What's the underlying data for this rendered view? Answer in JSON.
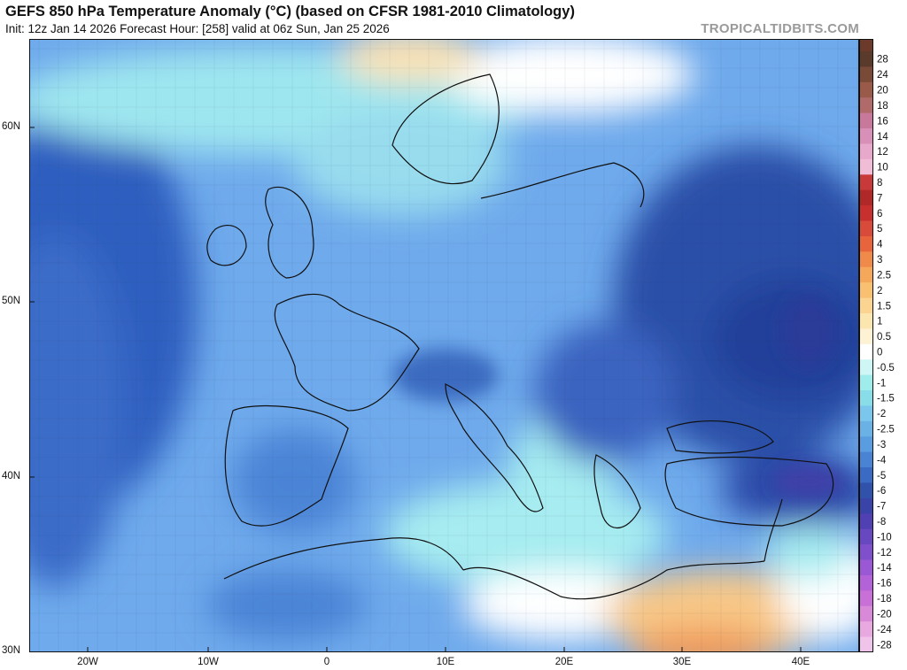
{
  "header": {
    "title": "GEFS 850 hPa Temperature Anomaly (°C) (based on CFSR 1981-2010 Climatology)",
    "subtitle": "Init: 12z Jan 14 2026   Forecast Hour: [258]   valid at 06z Sun, Jan 25 2026",
    "credit": "TROPICALTIDBITS.COM"
  },
  "axes": {
    "x_labels": [
      "20W",
      "10W",
      "0",
      "10E",
      "20E",
      "30E",
      "40E"
    ],
    "y_labels": [
      "60N",
      "50N",
      "40N",
      "30N"
    ]
  },
  "colorbar": {
    "labels": [
      "28",
      "24",
      "20",
      "18",
      "16",
      "14",
      "12",
      "10",
      "8",
      "7",
      "6",
      "5",
      "4",
      "3",
      "2.5",
      "2",
      "1.5",
      "1",
      "0.5",
      "0",
      "-0.5",
      "-1",
      "-1.5",
      "-2",
      "-2.5",
      "-3",
      "-4",
      "-5",
      "-6",
      "-7",
      "-8",
      "-10",
      "-12",
      "-14",
      "-16",
      "-18",
      "-20",
      "-24",
      "-28"
    ],
    "colors": [
      "#5a3a2a",
      "#7a4a38",
      "#9a5a4a",
      "#b06a6a",
      "#c8789a",
      "#d890b8",
      "#e8a8cc",
      "#f0bcd6",
      "#c83a3a",
      "#b02828",
      "#c83030",
      "#d84a3a",
      "#e8643c",
      "#f08a4a",
      "#f5a85a",
      "#f8c070",
      "#fad490",
      "#fce6b0",
      "#fdf2d4",
      "#ffffff",
      "#cdf6f4",
      "#9eecec",
      "#88dde8",
      "#7ac6ec",
      "#6ab2e6",
      "#5a9ce0",
      "#4a82d4",
      "#3a6ac4",
      "#3052aa",
      "#3a44a8",
      "#5040b4",
      "#6848c0",
      "#8050cc",
      "#9a58d4",
      "#b462d8",
      "#c870d8",
      "#d88ad8",
      "#e8a8e0",
      "#f0c4ea"
    ]
  },
  "map": {
    "description_colors": {
      "ocean_anomaly_strong": "#2f62c2",
      "ocean_anomaly": "#6aa8ea",
      "cool_light": "#9ee8f0",
      "neutral": "#ffffff",
      "warm": "#f8c070"
    }
  }
}
